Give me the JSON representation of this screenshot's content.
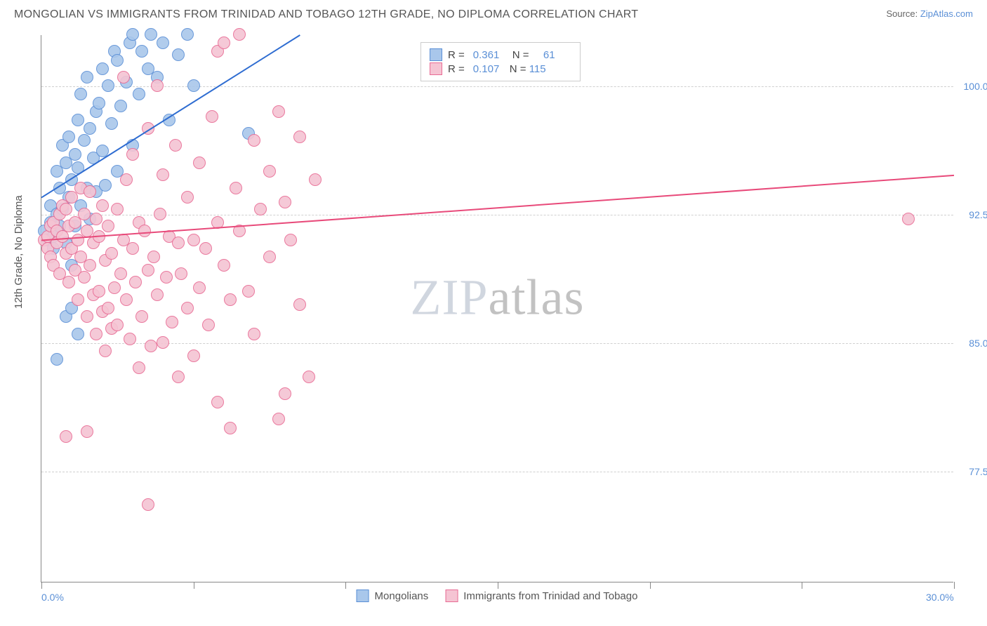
{
  "title": "MONGOLIAN VS IMMIGRANTS FROM TRINIDAD AND TOBAGO 12TH GRADE, NO DIPLOMA CORRELATION CHART",
  "source_prefix": "Source: ",
  "source_link": "ZipAtlas.com",
  "ylabel": "12th Grade, No Diploma",
  "watermark": {
    "part1": "ZIP",
    "part2": "atlas"
  },
  "chart": {
    "type": "scatter",
    "xlim": [
      0,
      30
    ],
    "ylim": [
      71,
      103
    ],
    "yticks": [
      77.5,
      85.0,
      92.5,
      100.0
    ],
    "ytick_labels": [
      "77.5%",
      "85.0%",
      "92.5%",
      "100.0%"
    ],
    "xticks": [
      0,
      5,
      10,
      15,
      20,
      25,
      30
    ],
    "xtick_labels": {
      "0": "0.0%",
      "30": "30.0%"
    },
    "background_color": "#ffffff",
    "grid_color": "#d0d0d0",
    "marker_radius": 9,
    "marker_fill_opacity": 0.35,
    "marker_stroke_width": 1,
    "series": [
      {
        "name": "Mongolians",
        "color_fill": "#a9c7eb",
        "color_stroke": "#5a8fd6",
        "R": "0.361",
        "N": "61",
        "trend": {
          "x1": 0,
          "y1": 93.5,
          "x2": 8.5,
          "y2": 103,
          "color": "#2e6cd1",
          "width": 2
        },
        "points": [
          [
            0.1,
            91.5
          ],
          [
            0.2,
            91.0
          ],
          [
            0.3,
            92.0
          ],
          [
            0.3,
            93.0
          ],
          [
            0.4,
            91.2
          ],
          [
            0.4,
            90.5
          ],
          [
            0.5,
            92.5
          ],
          [
            0.5,
            95.0
          ],
          [
            0.6,
            91.8
          ],
          [
            0.6,
            94.0
          ],
          [
            0.7,
            96.5
          ],
          [
            0.7,
            92.8
          ],
          [
            0.8,
            95.5
          ],
          [
            0.8,
            90.8
          ],
          [
            0.9,
            93.5
          ],
          [
            0.9,
            97.0
          ],
          [
            1.0,
            94.5
          ],
          [
            1.0,
            89.5
          ],
          [
            1.1,
            96.0
          ],
          [
            1.1,
            91.8
          ],
          [
            1.2,
            95.2
          ],
          [
            1.2,
            98.0
          ],
          [
            1.3,
            93.0
          ],
          [
            1.3,
            99.5
          ],
          [
            1.4,
            96.8
          ],
          [
            1.5,
            94.0
          ],
          [
            1.5,
            100.5
          ],
          [
            1.6,
            97.5
          ],
          [
            1.6,
            92.2
          ],
          [
            1.7,
            95.8
          ],
          [
            1.8,
            98.5
          ],
          [
            1.8,
            93.8
          ],
          [
            1.9,
            99.0
          ],
          [
            2.0,
            101.0
          ],
          [
            2.0,
            96.2
          ],
          [
            2.1,
            94.2
          ],
          [
            2.2,
            100.0
          ],
          [
            2.3,
            97.8
          ],
          [
            2.4,
            102.0
          ],
          [
            2.5,
            95.0
          ],
          [
            2.5,
            101.5
          ],
          [
            2.6,
            98.8
          ],
          [
            2.8,
            100.2
          ],
          [
            2.9,
            102.5
          ],
          [
            3.0,
            96.5
          ],
          [
            3.0,
            103.0
          ],
          [
            3.2,
            99.5
          ],
          [
            3.3,
            102.0
          ],
          [
            3.5,
            101.0
          ],
          [
            3.6,
            103.0
          ],
          [
            3.8,
            100.5
          ],
          [
            4.0,
            102.5
          ],
          [
            4.2,
            98.0
          ],
          [
            4.5,
            101.8
          ],
          [
            4.8,
            103.0
          ],
          [
            5.0,
            100.0
          ],
          [
            0.5,
            84.0
          ],
          [
            0.8,
            86.5
          ],
          [
            1.0,
            87.0
          ],
          [
            1.2,
            85.5
          ],
          [
            6.8,
            97.2
          ]
        ]
      },
      {
        "name": "Immigrants from Trinidad and Tobago",
        "color_fill": "#f5c4d3",
        "color_stroke": "#e86b94",
        "R": "0.107",
        "N": "115",
        "trend": {
          "x1": 0,
          "y1": 91.0,
          "x2": 30,
          "y2": 94.8,
          "color": "#e84a7a",
          "width": 2
        },
        "points": [
          [
            0.1,
            91.0
          ],
          [
            0.2,
            91.2
          ],
          [
            0.2,
            90.5
          ],
          [
            0.3,
            91.8
          ],
          [
            0.3,
            90.0
          ],
          [
            0.4,
            92.0
          ],
          [
            0.4,
            89.5
          ],
          [
            0.5,
            91.5
          ],
          [
            0.5,
            90.8
          ],
          [
            0.6,
            92.5
          ],
          [
            0.6,
            89.0
          ],
          [
            0.7,
            91.2
          ],
          [
            0.7,
            93.0
          ],
          [
            0.8,
            90.2
          ],
          [
            0.8,
            92.8
          ],
          [
            0.9,
            88.5
          ],
          [
            0.9,
            91.8
          ],
          [
            1.0,
            90.5
          ],
          [
            1.0,
            93.5
          ],
          [
            1.1,
            89.2
          ],
          [
            1.1,
            92.0
          ],
          [
            1.2,
            87.5
          ],
          [
            1.2,
            91.0
          ],
          [
            1.3,
            90.0
          ],
          [
            1.3,
            94.0
          ],
          [
            1.4,
            88.8
          ],
          [
            1.4,
            92.5
          ],
          [
            1.5,
            86.5
          ],
          [
            1.5,
            91.5
          ],
          [
            1.6,
            89.5
          ],
          [
            1.6,
            93.8
          ],
          [
            1.7,
            87.8
          ],
          [
            1.7,
            90.8
          ],
          [
            1.8,
            92.2
          ],
          [
            1.8,
            85.5
          ],
          [
            1.9,
            88.0
          ],
          [
            1.9,
            91.2
          ],
          [
            2.0,
            86.8
          ],
          [
            2.0,
            93.0
          ],
          [
            2.1,
            89.8
          ],
          [
            2.1,
            84.5
          ],
          [
            2.2,
            87.0
          ],
          [
            2.2,
            91.8
          ],
          [
            2.3,
            85.8
          ],
          [
            2.3,
            90.2
          ],
          [
            2.4,
            88.2
          ],
          [
            2.5,
            92.8
          ],
          [
            2.5,
            86.0
          ],
          [
            2.6,
            89.0
          ],
          [
            2.7,
            91.0
          ],
          [
            2.7,
            100.5
          ],
          [
            2.8,
            87.5
          ],
          [
            2.8,
            94.5
          ],
          [
            2.9,
            85.2
          ],
          [
            3.0,
            90.5
          ],
          [
            3.0,
            96.0
          ],
          [
            3.1,
            88.5
          ],
          [
            3.2,
            92.0
          ],
          [
            3.2,
            83.5
          ],
          [
            3.3,
            86.5
          ],
          [
            3.4,
            91.5
          ],
          [
            3.5,
            89.2
          ],
          [
            3.5,
            97.5
          ],
          [
            3.6,
            84.8
          ],
          [
            3.7,
            90.0
          ],
          [
            3.8,
            87.8
          ],
          [
            3.8,
            100.0
          ],
          [
            3.9,
            92.5
          ],
          [
            4.0,
            85.0
          ],
          [
            4.0,
            94.8
          ],
          [
            4.1,
            88.8
          ],
          [
            4.2,
            91.2
          ],
          [
            4.3,
            86.2
          ],
          [
            4.4,
            96.5
          ],
          [
            4.5,
            90.8
          ],
          [
            4.5,
            83.0
          ],
          [
            4.6,
            89.0
          ],
          [
            4.8,
            93.5
          ],
          [
            4.8,
            87.0
          ],
          [
            5.0,
            91.0
          ],
          [
            5.0,
            84.2
          ],
          [
            5.2,
            95.5
          ],
          [
            5.2,
            88.2
          ],
          [
            5.4,
            90.5
          ],
          [
            5.5,
            86.0
          ],
          [
            5.6,
            98.2
          ],
          [
            5.8,
            92.0
          ],
          [
            5.8,
            102.0
          ],
          [
            6.0,
            89.5
          ],
          [
            6.0,
            102.5
          ],
          [
            6.2,
            87.5
          ],
          [
            6.4,
            94.0
          ],
          [
            6.5,
            91.5
          ],
          [
            6.5,
            103.0
          ],
          [
            6.8,
            88.0
          ],
          [
            7.0,
            96.8
          ],
          [
            7.0,
            85.5
          ],
          [
            7.2,
            92.8
          ],
          [
            7.5,
            90.0
          ],
          [
            7.5,
            95.0
          ],
          [
            7.8,
            98.5
          ],
          [
            8.0,
            93.2
          ],
          [
            8.0,
            82.0
          ],
          [
            8.2,
            91.0
          ],
          [
            8.5,
            87.2
          ],
          [
            8.5,
            97.0
          ],
          [
            9.0,
            94.5
          ],
          [
            0.8,
            79.5
          ],
          [
            1.5,
            79.8
          ],
          [
            3.5,
            75.5
          ],
          [
            5.8,
            81.5
          ],
          [
            6.2,
            80.0
          ],
          [
            7.8,
            80.5
          ],
          [
            8.8,
            83.0
          ],
          [
            28.5,
            92.2
          ]
        ]
      }
    ]
  },
  "legend_bottom": [
    {
      "label": "Mongolians",
      "fill": "#a9c7eb",
      "stroke": "#5a8fd6"
    },
    {
      "label": "Immigrants from Trinidad and Tobago",
      "fill": "#f5c4d3",
      "stroke": "#e86b94"
    }
  ]
}
